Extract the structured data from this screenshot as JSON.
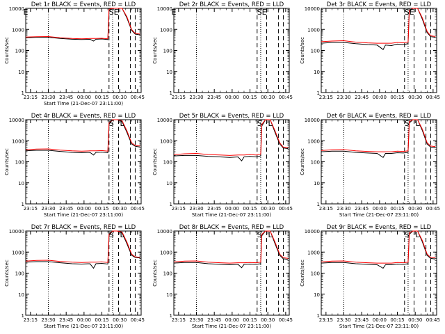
{
  "colors": {
    "events": "#000000",
    "lld": "#ff0000",
    "background": "#ffffff"
  },
  "chart_data": [
    {
      "type": "line",
      "title": "Det 1r BLACK = Events, RED = LLD",
      "xlabel": "Start Time (21-Dec-07 23:11:00)",
      "ylabel": "Counts/sec",
      "yscale": "log",
      "ylim": [
        1,
        10000
      ],
      "y_ticks": [
        "1",
        "10",
        "100",
        "1000",
        "10000"
      ],
      "x_ticks": [
        "23:15",
        "23:30",
        "23:45",
        "00:00",
        "00:15",
        "00:30",
        "00:45"
      ],
      "markers": [
        "E",
        "S",
        "E"
      ],
      "series": [
        {
          "name": "Events",
          "color": "#000000",
          "x": [
            "23:11",
            "23:20",
            "23:30",
            "23:40",
            "23:50",
            "23:58",
            "00:05",
            "00:08",
            "00:10",
            "00:15",
            "00:20",
            "00:21",
            "00:24",
            "00:28",
            "00:32",
            "00:36",
            "00:40",
            "00:43",
            "00:47"
          ],
          "y": [
            400,
            420,
            420,
            370,
            340,
            330,
            340,
            280,
            340,
            350,
            330,
            8000,
            10000,
            10000,
            10000,
            3500,
            900,
            600,
            550
          ]
        },
        {
          "name": "LLD",
          "color": "#ff0000",
          "x": [
            "23:11",
            "23:20",
            "23:30",
            "23:40",
            "23:50",
            "23:58",
            "00:05",
            "00:10",
            "00:15",
            "00:20",
            "00:21",
            "00:24",
            "00:28",
            "00:32",
            "00:36",
            "00:40",
            "00:43",
            "00:47"
          ],
          "y": [
            430,
            450,
            460,
            400,
            370,
            360,
            370,
            370,
            380,
            360,
            9000,
            10000,
            10000,
            10000,
            4000,
            1000,
            650,
            600
          ]
        }
      ]
    },
    {
      "type": "line",
      "title": "Det 2r BLACK = Events, RED = LLD",
      "xlabel": "",
      "ylabel": "Counts/sec",
      "yscale": "log",
      "ylim": [
        1,
        10000
      ],
      "y_ticks": [
        "1",
        "10",
        "100",
        "1000",
        "10000"
      ],
      "x_ticks": [
        "23:15",
        "23:30",
        "23:45",
        "00:00",
        "00:15",
        "00:30",
        "00:45"
      ],
      "markers": [
        "E",
        "S",
        "E"
      ],
      "series": []
    },
    {
      "type": "line",
      "title": "Det 3r BLACK = Events, RED = LLD",
      "xlabel": "",
      "ylabel": "Counts/sec",
      "yscale": "log",
      "ylim": [
        1,
        10000
      ],
      "y_ticks": [
        "1",
        "10",
        "100",
        "1000",
        "10000"
      ],
      "x_ticks": [
        "23:15",
        "23:30",
        "23:45",
        "00:00",
        "00:15",
        "00:30",
        "00:45"
      ],
      "markers": [
        "S",
        "E"
      ],
      "series": [
        {
          "name": "Events",
          "color": "#000000",
          "x": [
            "23:11",
            "23:20",
            "23:30",
            "23:40",
            "23:50",
            "23:58",
            "00:03",
            "00:05",
            "00:10",
            "00:15",
            "00:20",
            "00:24",
            "00:25",
            "00:28",
            "00:32",
            "00:36",
            "00:40",
            "00:43",
            "00:47"
          ],
          "y": [
            220,
            240,
            240,
            210,
            190,
            180,
            110,
            180,
            170,
            200,
            190,
            210,
            7000,
            10000,
            10000,
            3000,
            700,
            450,
            420
          ]
        },
        {
          "name": "LLD",
          "color": "#ff0000",
          "x": [
            "23:11",
            "23:20",
            "23:30",
            "23:40",
            "23:50",
            "23:58",
            "00:05",
            "00:10",
            "00:15",
            "00:20",
            "00:24",
            "00:25",
            "00:28",
            "00:32",
            "00:36",
            "00:40",
            "00:43",
            "00:47"
          ],
          "y": [
            260,
            280,
            290,
            250,
            230,
            220,
            220,
            220,
            240,
            230,
            250,
            8000,
            10000,
            10000,
            3500,
            800,
            500,
            460
          ]
        }
      ]
    },
    {
      "type": "line",
      "title": "Det 4r BLACK = Events, RED = LLD",
      "xlabel": "Start Time (21-Dec-07 23:11:00)",
      "ylabel": "Counts/sec",
      "yscale": "log",
      "ylim": [
        1,
        10000
      ],
      "y_ticks": [
        "1",
        "10",
        "100",
        "1000",
        "10000"
      ],
      "x_ticks": [
        "23:15",
        "23:30",
        "23:45",
        "00:00",
        "00:15",
        "00:30",
        "00:45"
      ],
      "markers": [
        "S",
        "L"
      ],
      "series": [
        {
          "name": "Events",
          "color": "#000000",
          "x": [
            "23:11",
            "23:20",
            "23:30",
            "23:40",
            "23:50",
            "23:58",
            "00:05",
            "00:08",
            "00:10",
            "00:15",
            "00:20",
            "00:21",
            "00:24",
            "00:28",
            "00:32",
            "00:36",
            "00:40",
            "00:43",
            "00:47"
          ],
          "y": [
            330,
            350,
            350,
            310,
            280,
            270,
            280,
            210,
            280,
            290,
            270,
            6000,
            10000,
            10000,
            8000,
            2500,
            700,
            550,
            500
          ]
        },
        {
          "name": "LLD",
          "color": "#ff0000",
          "x": [
            "23:11",
            "23:20",
            "23:30",
            "23:40",
            "23:50",
            "23:58",
            "00:05",
            "00:10",
            "00:15",
            "00:20",
            "00:21",
            "00:24",
            "00:28",
            "00:32",
            "00:36",
            "00:40",
            "00:43",
            "00:47"
          ],
          "y": [
            370,
            400,
            410,
            360,
            330,
            320,
            330,
            330,
            340,
            320,
            7000,
            10000,
            10000,
            9000,
            3000,
            800,
            600,
            560
          ]
        }
      ]
    },
    {
      "type": "line",
      "title": "Det 5r BLACK = Events, RED = LLD",
      "xlabel": "Start Time (21-Dec-07 23:11:00)",
      "ylabel": "Counts/sec",
      "yscale": "log",
      "ylim": [
        1,
        10000
      ],
      "y_ticks": [
        "1",
        "10",
        "100",
        "1000",
        "10000"
      ],
      "x_ticks": [
        "23:15",
        "23:30",
        "23:45",
        "00:00",
        "00:15",
        "00:30",
        "00:45"
      ],
      "markers": [
        "S",
        "L"
      ],
      "series": [
        {
          "name": "Events",
          "color": "#000000",
          "x": [
            "23:11",
            "23:20",
            "23:30",
            "23:40",
            "23:50",
            "23:58",
            "00:05",
            "00:08",
            "00:10",
            "00:15",
            "00:20",
            "00:24",
            "00:25",
            "00:28",
            "00:32",
            "00:36",
            "00:40",
            "00:43",
            "00:47"
          ],
          "y": [
            190,
            200,
            200,
            180,
            170,
            160,
            170,
            110,
            170,
            180,
            170,
            190,
            5000,
            10000,
            10000,
            2500,
            700,
            450,
            420
          ]
        },
        {
          "name": "LLD",
          "color": "#ff0000",
          "x": [
            "23:11",
            "23:20",
            "23:30",
            "23:40",
            "23:50",
            "23:58",
            "00:05",
            "00:10",
            "00:15",
            "00:20",
            "00:24",
            "00:25",
            "00:28",
            "00:32",
            "00:36",
            "00:40",
            "00:43",
            "00:47"
          ],
          "y": [
            220,
            240,
            250,
            220,
            210,
            200,
            210,
            210,
            220,
            210,
            230,
            6000,
            10000,
            10000,
            3000,
            800,
            500,
            460
          ]
        }
      ]
    },
    {
      "type": "line",
      "title": "Det 6r BLACK = Events, RED = LLD",
      "xlabel": "Start Time (21-Dec-07 23:11:00)",
      "ylabel": "Counts/sec",
      "yscale": "log",
      "ylim": [
        1,
        10000
      ],
      "y_ticks": [
        "1",
        "10",
        "100",
        "1000",
        "10000"
      ],
      "x_ticks": [
        "23:15",
        "23:30",
        "23:45",
        "00:00",
        "00:15",
        "00:30",
        "00:45"
      ],
      "markers": [
        "S",
        "L"
      ],
      "series": [
        {
          "name": "Events",
          "color": "#000000",
          "x": [
            "23:11",
            "23:20",
            "23:30",
            "23:40",
            "23:50",
            "23:58",
            "00:03",
            "00:05",
            "00:10",
            "00:15",
            "00:20",
            "00:24",
            "00:25",
            "00:28",
            "00:32",
            "00:36",
            "00:40",
            "00:43",
            "00:47"
          ],
          "y": [
            300,
            320,
            320,
            280,
            260,
            250,
            160,
            250,
            250,
            270,
            260,
            280,
            7000,
            10000,
            10000,
            3000,
            700,
            500,
            470
          ]
        },
        {
          "name": "LLD",
          "color": "#ff0000",
          "x": [
            "23:11",
            "23:20",
            "23:30",
            "23:40",
            "23:50",
            "23:58",
            "00:05",
            "00:10",
            "00:15",
            "00:20",
            "00:24",
            "00:25",
            "00:28",
            "00:32",
            "00:36",
            "00:40",
            "00:43",
            "00:47"
          ],
          "y": [
            340,
            370,
            380,
            330,
            310,
            300,
            300,
            300,
            320,
            310,
            330,
            8000,
            10000,
            10000,
            3500,
            800,
            560,
            520
          ]
        }
      ]
    },
    {
      "type": "line",
      "title": "Det 7r BLACK = Events, RED = LLD",
      "xlabel": "Start Time (21-Dec-07 23:11:00)",
      "ylabel": "Counts/sec",
      "yscale": "log",
      "ylim": [
        1,
        10000
      ],
      "y_ticks": [
        "1",
        "10",
        "100",
        "1000",
        "10000"
      ],
      "x_ticks": [
        "23:15",
        "23:30",
        "23:45",
        "00:00",
        "00:15",
        "00:30",
        "00:45"
      ],
      "markers": [
        "S",
        "L"
      ],
      "series": [
        {
          "name": "Events",
          "color": "#000000",
          "x": [
            "23:11",
            "23:20",
            "23:30",
            "23:40",
            "23:50",
            "23:58",
            "00:05",
            "00:08",
            "00:10",
            "00:15",
            "00:20",
            "00:21",
            "00:24",
            "00:28",
            "00:32",
            "00:36",
            "00:40",
            "00:43",
            "00:47"
          ],
          "y": [
            330,
            350,
            350,
            310,
            280,
            270,
            280,
            170,
            280,
            290,
            270,
            6000,
            10000,
            10000,
            8000,
            2500,
            700,
            560,
            520
          ]
        },
        {
          "name": "LLD",
          "color": "#ff0000",
          "x": [
            "23:11",
            "23:20",
            "23:30",
            "23:40",
            "23:50",
            "23:58",
            "00:05",
            "00:10",
            "00:15",
            "00:20",
            "00:21",
            "00:24",
            "00:28",
            "00:32",
            "00:36",
            "00:40",
            "00:43",
            "00:47"
          ],
          "y": [
            370,
            400,
            410,
            360,
            330,
            320,
            330,
            330,
            340,
            320,
            7000,
            10000,
            10000,
            9000,
            3000,
            800,
            600,
            560
          ]
        }
      ]
    },
    {
      "type": "line",
      "title": "Det 8r BLACK = Events, RED = LLD",
      "xlabel": "Start Time (21-Dec-07 23:11:00)",
      "ylabel": "Counts/sec",
      "yscale": "log",
      "ylim": [
        1,
        10000
      ],
      "y_ticks": [
        "1",
        "10",
        "100",
        "1000",
        "10000"
      ],
      "x_ticks": [
        "23:15",
        "23:30",
        "23:45",
        "00:00",
        "00:15",
        "00:30",
        "00:45"
      ],
      "markers": [
        "S",
        "L"
      ],
      "series": [
        {
          "name": "Events",
          "color": "#000000",
          "x": [
            "23:11",
            "23:20",
            "23:30",
            "23:40",
            "23:50",
            "23:58",
            "00:05",
            "00:08",
            "00:10",
            "00:15",
            "00:20",
            "00:24",
            "00:25",
            "00:28",
            "00:32",
            "00:36",
            "00:40",
            "00:43",
            "00:47"
          ],
          "y": [
            300,
            320,
            320,
            280,
            260,
            250,
            260,
            180,
            260,
            270,
            260,
            280,
            6000,
            10000,
            10000,
            2500,
            700,
            480,
            450
          ]
        },
        {
          "name": "LLD",
          "color": "#ff0000",
          "x": [
            "23:11",
            "23:20",
            "23:30",
            "23:40",
            "23:50",
            "23:58",
            "00:05",
            "00:10",
            "00:15",
            "00:20",
            "00:24",
            "00:25",
            "00:28",
            "00:32",
            "00:36",
            "00:40",
            "00:43",
            "00:47"
          ],
          "y": [
            340,
            370,
            380,
            330,
            310,
            300,
            310,
            310,
            320,
            310,
            330,
            7000,
            10000,
            10000,
            3000,
            800,
            540,
            500
          ]
        }
      ]
    },
    {
      "type": "line",
      "title": "Det 9r BLACK = Events, RED = LLD",
      "xlabel": "Start Time (21-Dec-07 23:11:00)",
      "ylabel": "Counts/sec",
      "yscale": "log",
      "ylim": [
        1,
        10000
      ],
      "y_ticks": [
        "1",
        "10",
        "100",
        "1000",
        "10000"
      ],
      "x_ticks": [
        "23:15",
        "23:30",
        "23:45",
        "00:00",
        "00:15",
        "00:30",
        "00:45"
      ],
      "markers": [
        "S",
        "L"
      ],
      "series": [
        {
          "name": "Events",
          "color": "#000000",
          "x": [
            "23:11",
            "23:20",
            "23:30",
            "23:40",
            "23:50",
            "23:58",
            "00:03",
            "00:05",
            "00:10",
            "00:15",
            "00:20",
            "00:24",
            "00:25",
            "00:28",
            "00:32",
            "00:36",
            "00:40",
            "00:43",
            "00:47"
          ],
          "y": [
            300,
            320,
            320,
            280,
            260,
            250,
            170,
            250,
            250,
            270,
            260,
            280,
            7000,
            10000,
            10000,
            3000,
            700,
            500,
            470
          ]
        },
        {
          "name": "LLD",
          "color": "#ff0000",
          "x": [
            "23:11",
            "23:20",
            "23:30",
            "23:40",
            "23:50",
            "23:58",
            "00:05",
            "00:10",
            "00:15",
            "00:20",
            "00:24",
            "00:25",
            "00:28",
            "00:32",
            "00:36",
            "00:40",
            "00:43",
            "00:47"
          ],
          "y": [
            340,
            370,
            380,
            330,
            310,
            300,
            300,
            300,
            320,
            310,
            330,
            8000,
            10000,
            10000,
            3500,
            800,
            560,
            520
          ]
        }
      ]
    }
  ]
}
